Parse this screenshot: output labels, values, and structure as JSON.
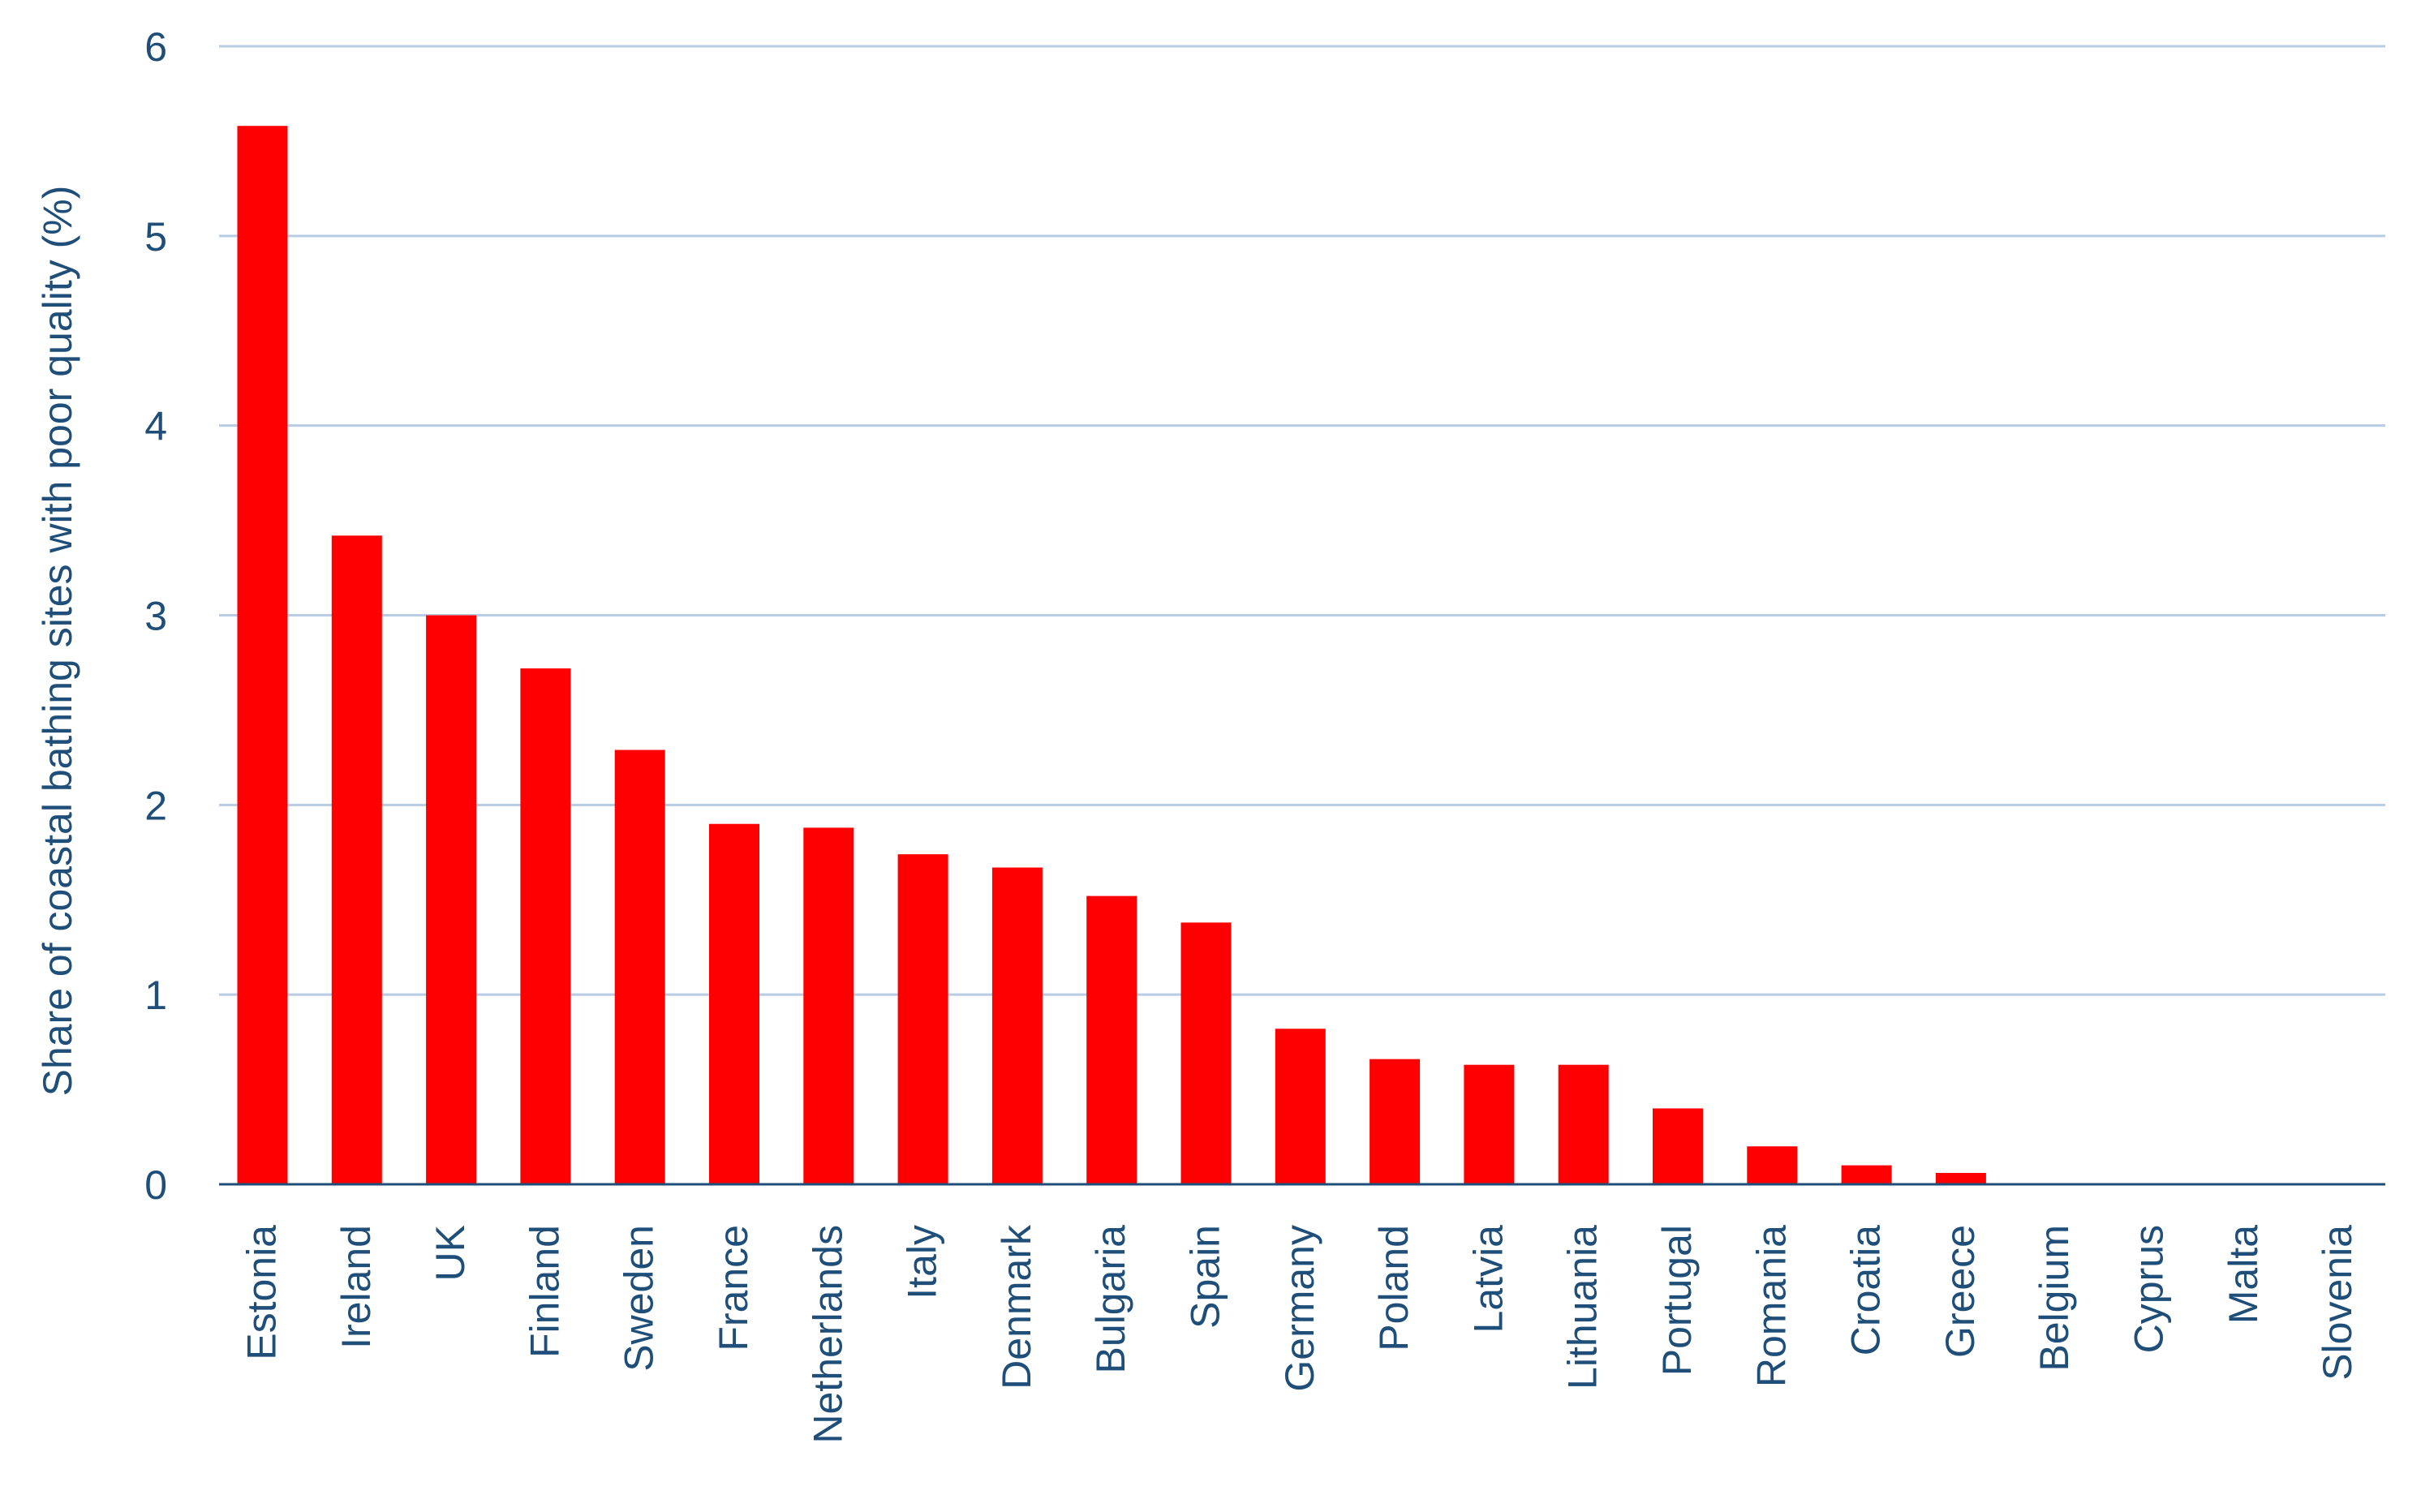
{
  "chart_data": {
    "type": "bar",
    "title": "",
    "xlabel": "",
    "ylabel": "Share of coastal bathing sites with poor quality (%)",
    "ylim": [
      0,
      6
    ],
    "yticks": [
      "0",
      "1",
      "2",
      "3",
      "4",
      "5",
      "6"
    ],
    "grid": true,
    "legend": "none",
    "categories": [
      "Estonia",
      "Ireland",
      "UK",
      "Finland",
      "Sweden",
      "France",
      "Netherlands",
      "Italy",
      "Denmark",
      "Bulgaria",
      "Spain",
      "Germany",
      "Poland",
      "Latvia",
      "Lithuania",
      "Portugal",
      "Romania",
      "Croatia",
      "Greece",
      "Belgium",
      "Cyprus",
      "Malta",
      "Slovenia"
    ],
    "values": [
      5.58,
      3.42,
      3.0,
      2.72,
      2.29,
      1.9,
      1.88,
      1.74,
      1.67,
      1.52,
      1.38,
      0.82,
      0.66,
      0.63,
      0.63,
      0.4,
      0.2,
      0.1,
      0.06,
      0,
      0,
      0,
      0
    ],
    "colors": {
      "bar": "#ff0000",
      "text": "#1f4e79",
      "grid": "#b8cce4",
      "axis": "#1f4e79"
    }
  }
}
